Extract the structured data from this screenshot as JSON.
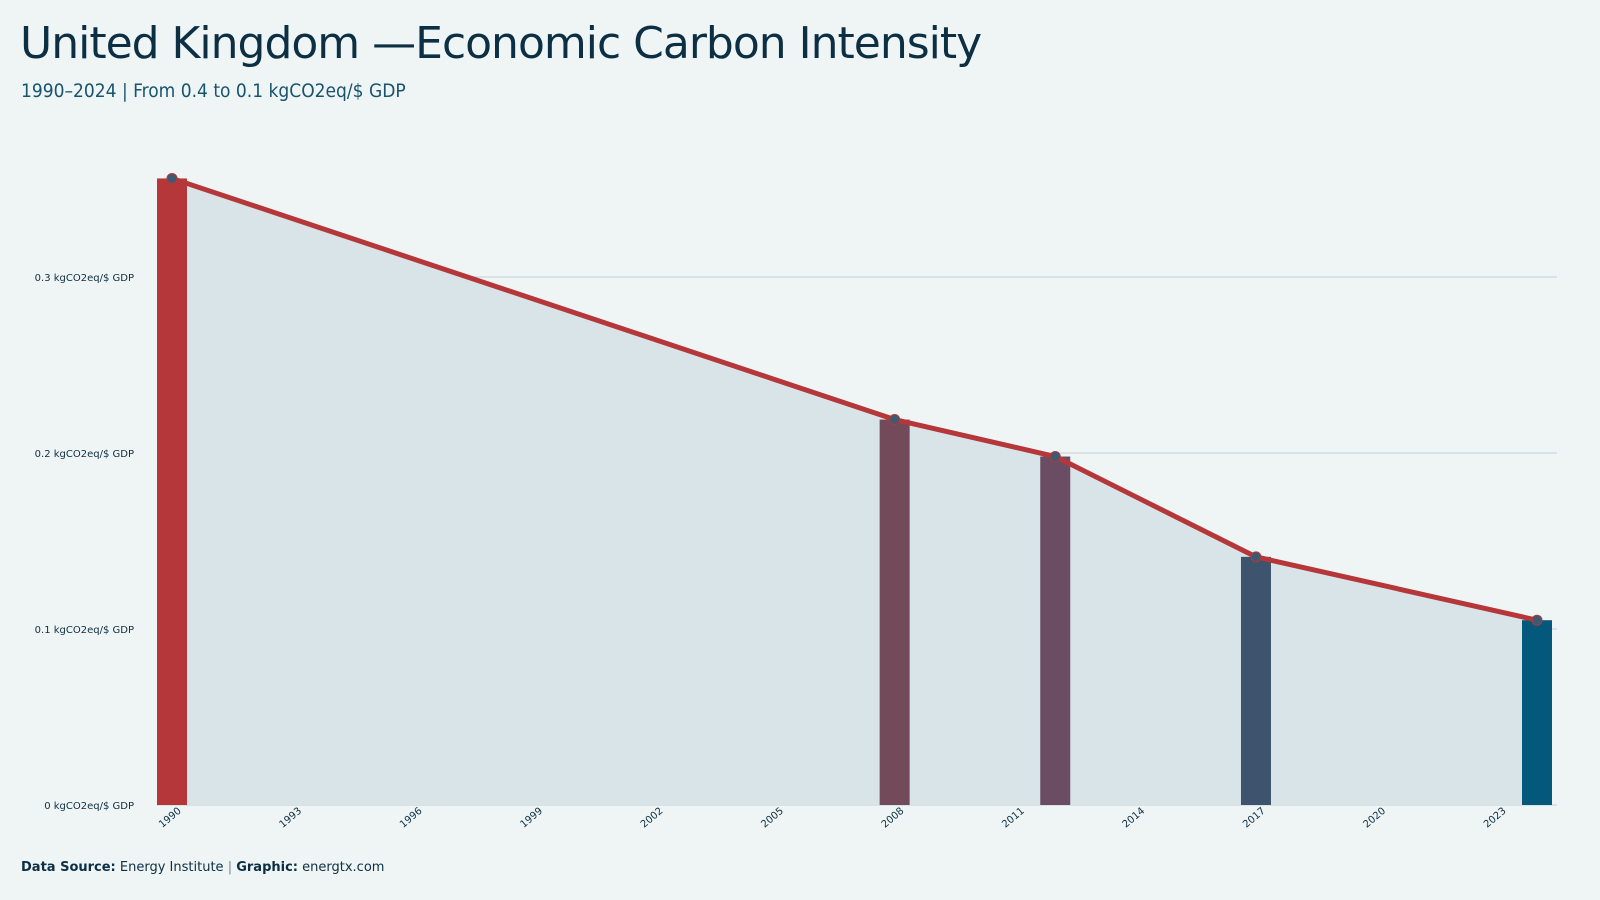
{
  "header": {
    "title": "United Kingdom —Economic Carbon Intensity",
    "subtitle": "1990–2024 | From 0.4 to 0.1 kgCO2eq/$ GDP"
  },
  "footer": {
    "source_label": "Data Source:",
    "source_value": "Energy Institute",
    "separator": "|",
    "graphic_label": "Graphic:",
    "graphic_value": "energtx.com"
  },
  "colors": {
    "background": "#eff5f5",
    "area_fill": "#d8e4e8",
    "line": "#b5373a",
    "gridline": "#c9d6db",
    "marker": "#3d5a73",
    "bars": [
      "#b5373a",
      "#724a59",
      "#6a4d62",
      "#3e546e",
      "#03587b"
    ]
  },
  "chart_data": {
    "type": "area",
    "title": "United Kingdom —Economic Carbon Intensity",
    "subtitle": "1990–2024 | From 0.4 to 0.1 kgCO2eq/$ GDP",
    "xlabel": "",
    "ylabel": "",
    "xlim": [
      1990,
      2024
    ],
    "ylim": [
      0,
      0.36
    ],
    "grid": true,
    "y_tick_values": [
      0,
      0.1,
      0.2,
      0.3
    ],
    "y_tick_labels": [
      "0 kgCO2eq/$ GDP",
      "0.1 kgCO2eq/$ GDP",
      "0.2 kgCO2eq/$ GDP",
      "0.3 kgCO2eq/$ GDP"
    ],
    "x_tick_labels": [
      "1990",
      "1993",
      "1996",
      "1999",
      "2002",
      "2005",
      "2008",
      "2011",
      "2014",
      "2017",
      "2020",
      "2023"
    ],
    "series": [
      {
        "x": [
          1990,
          2008,
          2012,
          2017,
          2024
        ],
        "values": [
          0.356,
          0.219,
          0.198,
          0.141,
          0.105
        ]
      }
    ],
    "highlight_bars": [
      {
        "x": 1990,
        "value": 0.356
      },
      {
        "x": 2008,
        "value": 0.219
      },
      {
        "x": 2012,
        "value": 0.198
      },
      {
        "x": 2017,
        "value": 0.141
      },
      {
        "x": 2024,
        "value": 0.105
      }
    ]
  }
}
